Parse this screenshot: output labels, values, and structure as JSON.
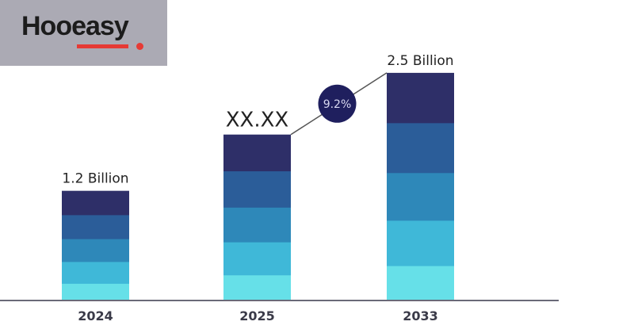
{
  "logo": {
    "text": "Hooeasy"
  },
  "chart_data": {
    "type": "bar",
    "stacked": true,
    "categories": [
      "2024",
      "2025",
      "2033"
    ],
    "values": [
      1.2,
      1.82,
      2.5
    ],
    "value_labels": [
      "1.2 Billion",
      "XX.XX",
      "2.5 Billion"
    ],
    "segment_share": [
      0.15,
      0.2,
      0.21,
      0.22,
      0.22
    ],
    "segment_colors": [
      "#66e0e8",
      "#3fb8d8",
      "#2e88b9",
      "#2b5d99",
      "#2e2f68"
    ],
    "annotation": {
      "text": "9.2%",
      "color": "#1f1f5e"
    },
    "ylim": [
      0,
      2.7
    ],
    "grid": false,
    "xlabel": "",
    "ylabel": "",
    "title": ""
  }
}
